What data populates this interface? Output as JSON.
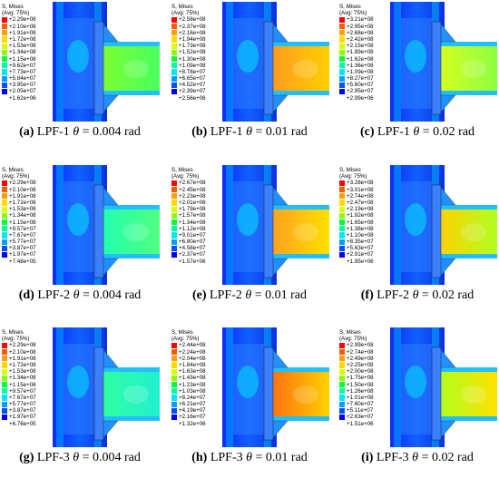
{
  "legend_title": "S, Mises",
  "legend_subtitle": "(Avg: 75%)",
  "palette": [
    "#ff0000",
    "#ff5a00",
    "#ffa000",
    "#ffd800",
    "#d8ff00",
    "#8cff00",
    "#00ff38",
    "#00ffa0",
    "#00e8ff",
    "#00a0ff",
    "#0050ff",
    "#0000ff"
  ],
  "panels": [
    {
      "label": "(a)",
      "specimen": "LPF-1",
      "angle": "= 0.004 rad",
      "legend": [
        "+2.29e+08",
        "+2.10e+08",
        "+1.91e+08",
        "+1.72e+08",
        "+1.53e+08",
        "+1.34e+08",
        "+1.15e+08",
        "+9.62e+07",
        "+7.73e+07",
        "+5.84e+07",
        "+3.95e+07",
        "+2.05e+07",
        "+1.62e+06"
      ]
    },
    {
      "label": "(b)",
      "specimen": "LPF-1",
      "angle": "= 0.01 rad",
      "legend": [
        "+2.58e+08",
        "+2.37e+08",
        "+2.16e+08",
        "+1.94e+08",
        "+1.73e+08",
        "+1.52e+08",
        "+1.30e+08",
        "+1.09e+08",
        "+8.78e+07",
        "+6.65e+07",
        "+4.52e+07",
        "+2.39e+07",
        "+2.56e+06"
      ]
    },
    {
      "label": "(c)",
      "specimen": "LPF-1",
      "angle": "= 0.02 rad",
      "legend": [
        "+3.21e+08",
        "+2.95e+08",
        "+2.68e+08",
        "+2.42e+08",
        "+2.15e+08",
        "+1.89e+08",
        "+1.62e+08",
        "+1.36e+08",
        "+1.09e+08",
        "+8.27e+07",
        "+5.60e+07",
        "+2.95e+07",
        "+2.99e+06"
      ]
    },
    {
      "label": "(d)",
      "specimen": "LPF-2",
      "angle": "= 0.004 rad",
      "legend": [
        "+2.29e+08",
        "+2.10e+08",
        "+1.91e+08",
        "+1.72e+08",
        "+1.53e+08",
        "+1.34e+08",
        "+1.15e+08",
        "+9.57e+07",
        "+7.67e+07",
        "+5.77e+07",
        "+3.87e+07",
        "+1.97e+07",
        "+7.48e+05"
      ]
    },
    {
      "label": "(e)",
      "specimen": "LPF-2",
      "angle": "= 0.01 rad",
      "legend": [
        "+2.67e+08",
        "+2.45e+08",
        "+2.23e+08",
        "+2.01e+08",
        "+1.79e+08",
        "+1.57e+08",
        "+1.34e+08",
        "+1.12e+08",
        "+9.01e+07",
        "+6.80e+07",
        "+4.58e+07",
        "+2.37e+07",
        "+1.57e+06"
      ]
    },
    {
      "label": "(f)",
      "specimen": "LPF-2",
      "angle": "= 0.02 rad",
      "legend": [
        "+3.28e+08",
        "+3.01e+08",
        "+2.74e+08",
        "+2.47e+08",
        "+2.19e+08",
        "+1.92e+08",
        "+1.65e+08",
        "+1.38e+08",
        "+1.10e+08",
        "+8.35e+07",
        "+5.63e+07",
        "+2.91e+07",
        "+1.95e+06"
      ]
    },
    {
      "label": "(g)",
      "specimen": "LPF-3",
      "angle": "= 0.004 rad",
      "legend": [
        "+2.29e+08",
        "+2.10e+08",
        "+1.91e+08",
        "+1.72e+08",
        "+1.53e+08",
        "+1.34e+08",
        "+1.15e+08",
        "+9.57e+07",
        "+7.67e+07",
        "+5.77e+07",
        "+3.87e+07",
        "+1.97e+07",
        "+6.76e+05"
      ]
    },
    {
      "label": "(h)",
      "specimen": "LPF-3",
      "angle": "= 0.01 rad",
      "legend": [
        "+2.44e+08",
        "+2.24e+08",
        "+2.04e+08",
        "+1.84e+08",
        "+1.63e+08",
        "+1.43e+08",
        "+1.23e+08",
        "+1.03e+08",
        "+8.24e+07",
        "+6.21e+07",
        "+4.19e+07",
        "+2.16e+07",
        "+1.32e+06"
      ]
    },
    {
      "label": "(i)",
      "specimen": "LPF-3",
      "angle": "= 0.02 rad",
      "legend": [
        "+2.99e+08",
        "+2.74e+08",
        "+2.49e+08",
        "+2.25e+08",
        "+2.00e+08",
        "+1.75e+08",
        "+1.50e+08",
        "+1.26e+08",
        "+1.01e+08",
        "+7.60e+07",
        "+5.11e+07",
        "+2.63e+07",
        "+1.51e+06"
      ]
    }
  ]
}
